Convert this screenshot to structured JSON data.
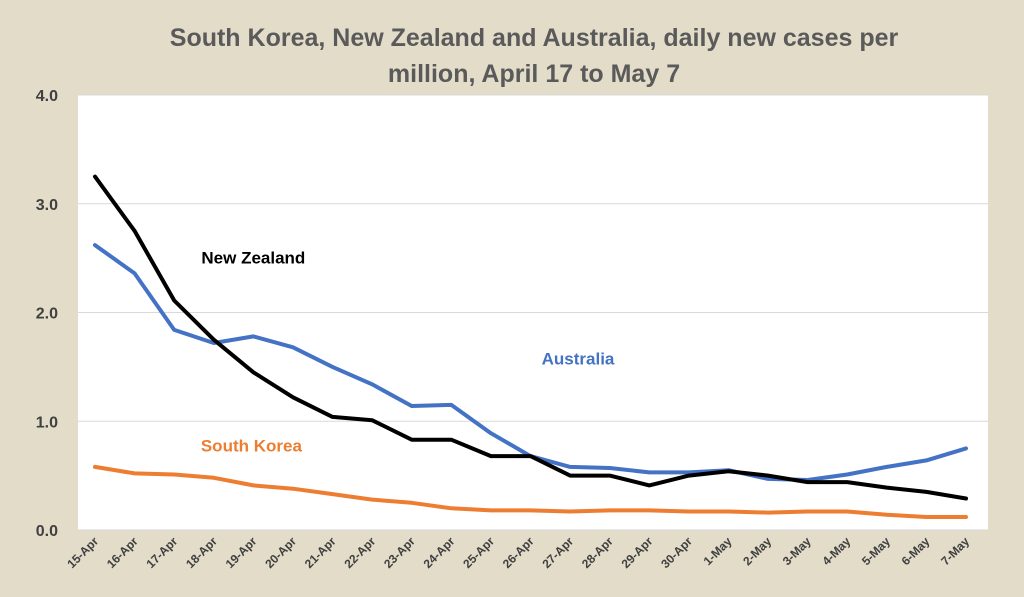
{
  "chart_data": {
    "type": "line",
    "title_lines": [
      "South Korea, New Zealand and Australia, daily new cases per",
      "million, April 17 to May 7"
    ],
    "xlabel": "",
    "ylabel": "",
    "ylim": [
      0,
      4
    ],
    "yticks": [
      "0.0",
      "1.0",
      "2.0",
      "3.0",
      "4.0"
    ],
    "grid": true,
    "categories": [
      "15-Apr",
      "16-Apr",
      "17-Apr",
      "18-Apr",
      "19-Apr",
      "20-Apr",
      "21-Apr",
      "22-Apr",
      "23-Apr",
      "24-Apr",
      "25-Apr",
      "26-Apr",
      "27-Apr",
      "28-Apr",
      "29-Apr",
      "30-Apr",
      "1-May",
      "2-May",
      "3-May",
      "4-May",
      "5-May",
      "6-May",
      "7-May"
    ],
    "series": [
      {
        "name": "New Zealand",
        "color": "#000000",
        "label_at": [
          4.0,
          2.45
        ],
        "values": [
          3.25,
          2.75,
          2.11,
          1.75,
          1.45,
          1.22,
          1.04,
          1.01,
          0.83,
          0.83,
          0.68,
          0.68,
          0.5,
          0.5,
          0.41,
          0.5,
          0.54,
          0.5,
          0.44,
          0.44,
          0.39,
          0.35,
          0.29
        ]
      },
      {
        "name": "Australia",
        "color": "#4472c4",
        "label_at": [
          12.2,
          1.52
        ],
        "values": [
          2.62,
          2.36,
          1.84,
          1.72,
          1.78,
          1.68,
          1.5,
          1.34,
          1.14,
          1.15,
          0.89,
          0.68,
          0.58,
          0.57,
          0.53,
          0.53,
          0.55,
          0.47,
          0.46,
          0.51,
          0.58,
          0.64,
          0.75
        ]
      },
      {
        "name": "South Korea",
        "color": "#ed7d31",
        "label_at": [
          3.95,
          0.72
        ],
        "values": [
          0.58,
          0.52,
          0.51,
          0.48,
          0.41,
          0.38,
          0.33,
          0.28,
          0.25,
          0.2,
          0.18,
          0.18,
          0.17,
          0.18,
          0.18,
          0.17,
          0.17,
          0.16,
          0.17,
          0.17,
          0.14,
          0.12,
          0.12
        ]
      }
    ]
  }
}
